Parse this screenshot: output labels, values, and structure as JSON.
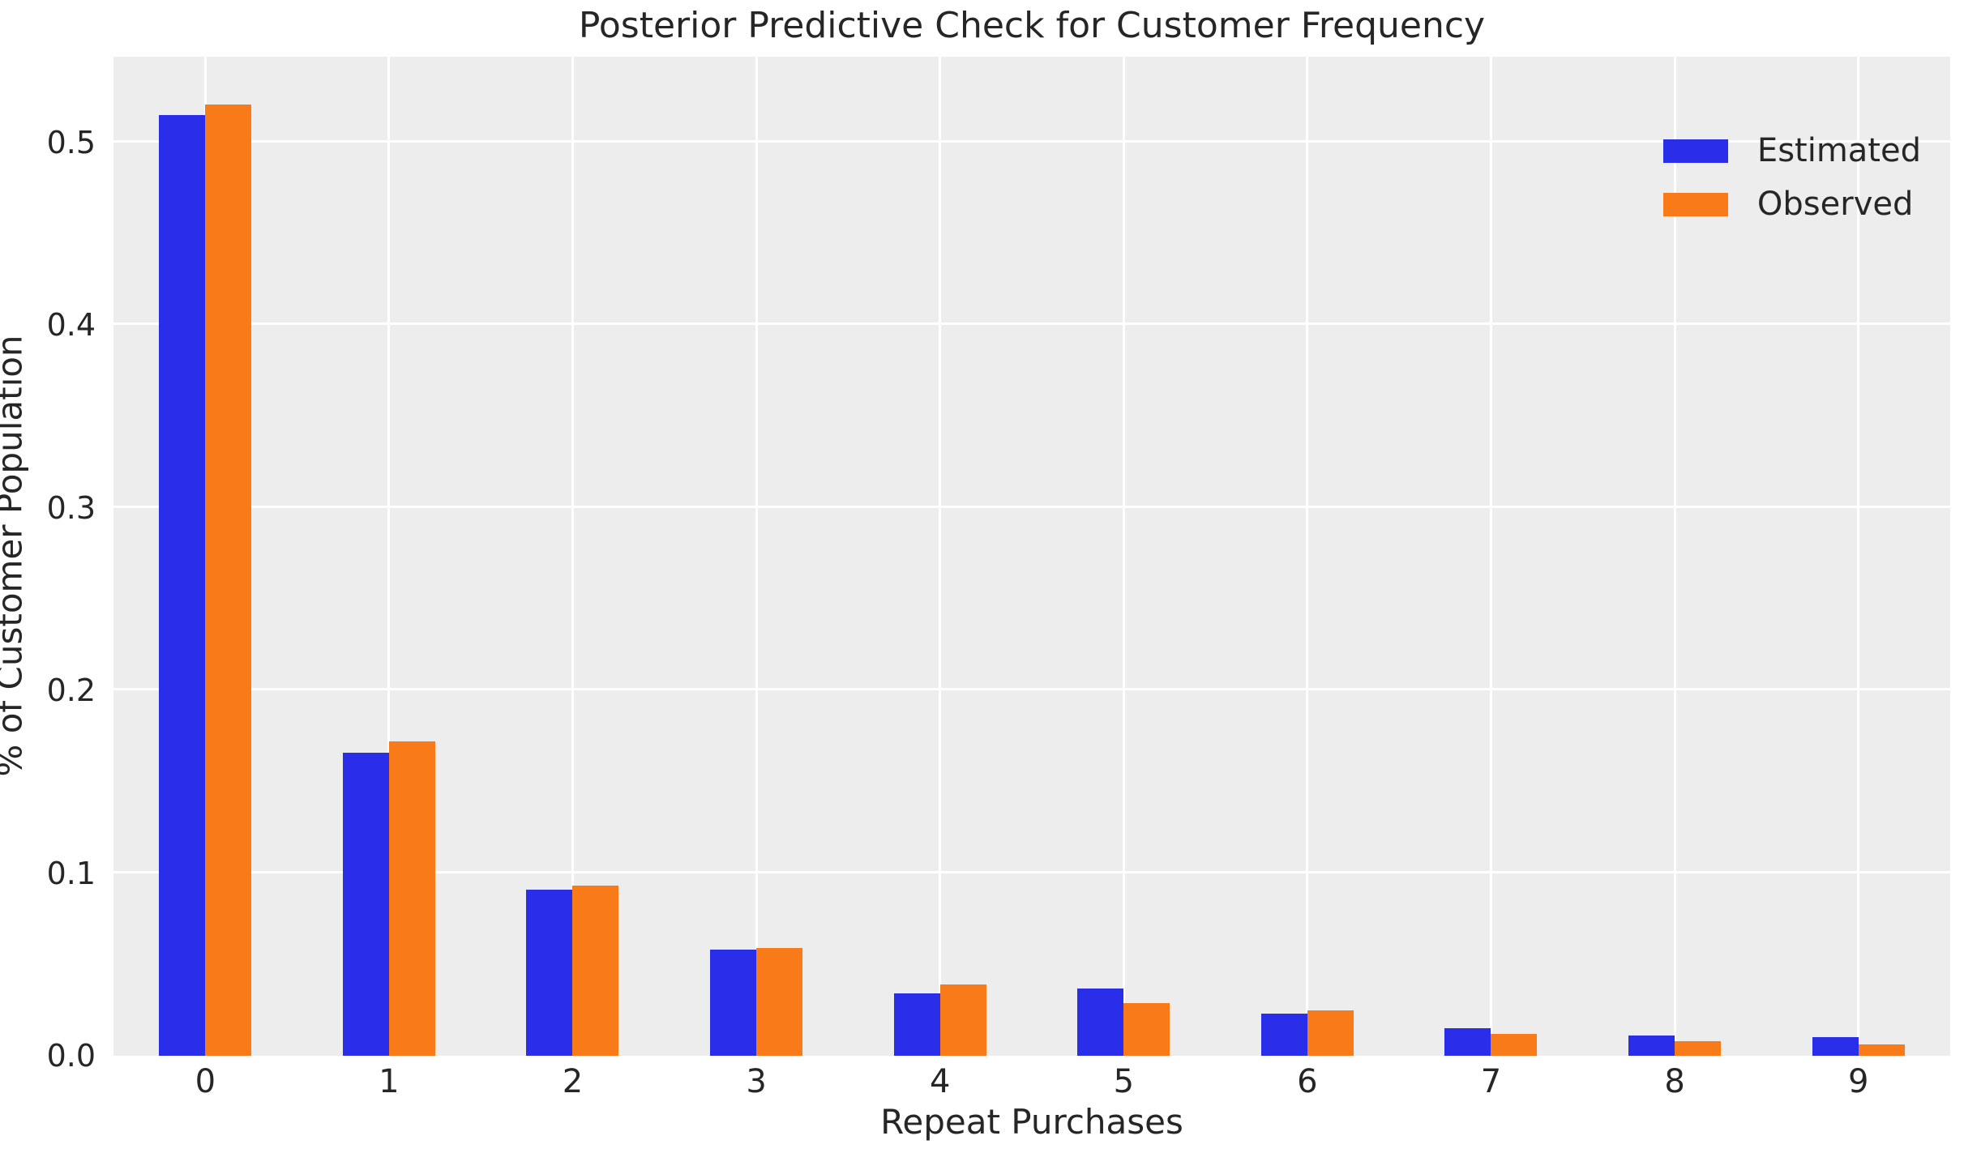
{
  "chart_data": {
    "type": "bar",
    "title": "Posterior Predictive Check for Customer Frequency",
    "xlabel": "Repeat Purchases",
    "ylabel": "% of Customer Population",
    "categories": [
      "0",
      "1",
      "2",
      "3",
      "4",
      "5",
      "6",
      "7",
      "8",
      "9"
    ],
    "series": [
      {
        "name": "Estimated",
        "color": "#2b2ee8",
        "values": [
          0.515,
          0.166,
          0.091,
          0.058,
          0.034,
          0.037,
          0.023,
          0.015,
          0.011,
          0.01
        ]
      },
      {
        "name": "Observed",
        "color": "#f87a19",
        "values": [
          0.521,
          0.172,
          0.093,
          0.059,
          0.039,
          0.029,
          0.025,
          0.012,
          0.008,
          0.006
        ]
      }
    ],
    "ylim": [
      0,
      0.547
    ],
    "yticks": [
      "0.0",
      "0.1",
      "0.2",
      "0.3",
      "0.4",
      "0.5"
    ],
    "ytick_values": [
      0.0,
      0.1,
      0.2,
      0.3,
      0.4,
      0.5
    ],
    "grid": true,
    "legend_position": "upper right",
    "colors": {
      "plot_background": "#ededed",
      "figure_background": "#ffffff",
      "gridline": "#ffffff",
      "text": "#262626",
      "estimated": "#2b2ee8",
      "observed": "#f87a19"
    }
  }
}
